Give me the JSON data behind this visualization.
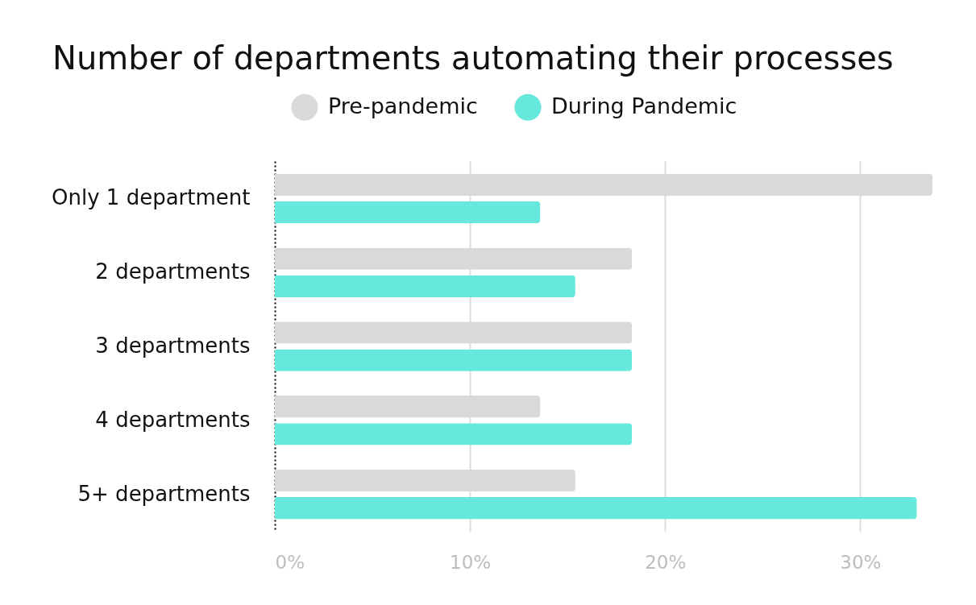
{
  "chart_data": {
    "type": "bar",
    "orientation": "horizontal",
    "title": "Number of departments automating their processes",
    "categories": [
      "Only 1 department",
      "2 departments",
      "3 departments",
      "4 departments",
      "5+ departments"
    ],
    "series": [
      {
        "name": "Pre-pandemic",
        "color": "#d9d9d9",
        "values": [
          33.7,
          18.3,
          18.3,
          13.6,
          15.4
        ]
      },
      {
        "name": "During Pandemic",
        "color": "#67e8dc",
        "values": [
          13.6,
          15.4,
          18.3,
          18.3,
          32.9
        ]
      }
    ],
    "xlim": [
      0,
      33.7
    ],
    "xticks": [
      {
        "value": 0,
        "label": "0%"
      },
      {
        "value": 10,
        "label": "10%"
      },
      {
        "value": 20,
        "label": "20%"
      },
      {
        "value": 30,
        "label": "30%"
      }
    ],
    "grid": "x",
    "legend": "top"
  }
}
